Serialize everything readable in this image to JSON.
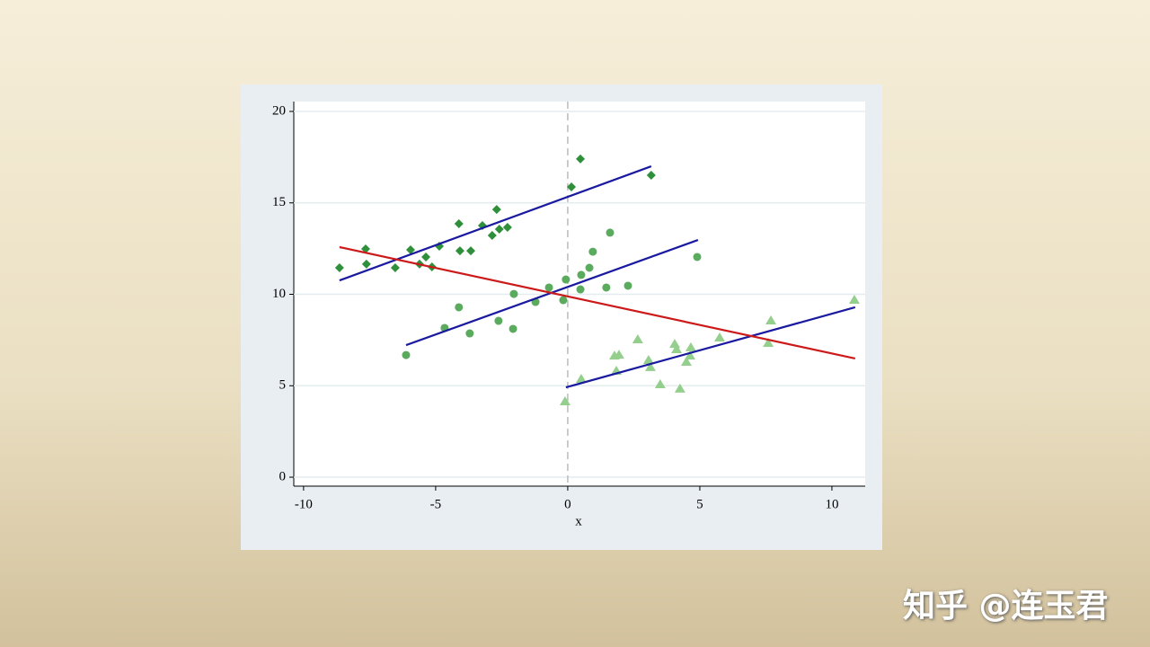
{
  "chart_data": {
    "type": "scatter",
    "xlabel": "x",
    "xlim": [
      -10.37,
      11.26
    ],
    "ylim": [
      -0.49,
      20.54
    ],
    "xticks": [
      -10,
      -5,
      0,
      5,
      10
    ],
    "yticks": [
      0,
      5,
      10,
      15,
      20
    ],
    "grid": true,
    "xline": 0,
    "series": [
      {
        "marker": "diamond",
        "color": "#2f8f3a",
        "x": [
          -8.64,
          -7.65,
          -7.62,
          -6.53,
          -5.95,
          -5.61,
          -5.37,
          -5.14,
          -4.86,
          -4.12,
          -4.08,
          -3.67,
          -3.23,
          -2.86,
          -2.69,
          -2.59,
          -2.28,
          0.14,
          0.48,
          3.16
        ],
        "values": [
          11.45,
          12.48,
          11.65,
          11.45,
          12.43,
          11.65,
          12.04,
          11.5,
          12.63,
          13.86,
          12.38,
          12.38,
          13.76,
          13.22,
          14.64,
          13.56,
          13.66,
          15.87,
          17.4,
          16.51
        ]
      },
      {
        "marker": "circle",
        "color": "#5aab5e",
        "x": [
          -6.12,
          -4.66,
          -4.12,
          -3.71,
          -2.62,
          -2.07,
          -2.04,
          -1.22,
          -0.71,
          -0.17,
          -0.07,
          0.48,
          0.51,
          0.82,
          0.95,
          1.46,
          1.6,
          2.28,
          4.9
        ],
        "values": [
          6.68,
          8.16,
          9.29,
          7.86,
          8.55,
          8.11,
          10.02,
          9.58,
          10.37,
          9.68,
          10.81,
          10.27,
          11.06,
          11.45,
          12.33,
          10.37,
          13.37,
          10.47,
          12.04
        ]
      },
      {
        "marker": "triangle",
        "color": "#94cf8e",
        "x": [
          -0.1,
          0.51,
          1.77,
          1.84,
          1.94,
          2.65,
          3.06,
          3.13,
          3.5,
          4.05,
          4.12,
          4.25,
          4.49,
          4.63,
          4.66,
          5.75,
          7.59,
          7.69,
          10.85
        ],
        "values": [
          4.13,
          5.36,
          6.63,
          5.8,
          6.68,
          7.52,
          6.39,
          6.0,
          5.06,
          7.27,
          6.98,
          4.82,
          6.29,
          6.63,
          7.08,
          7.62,
          7.32,
          8.55,
          9.68
        ]
      }
    ],
    "lines": [
      {
        "color": "#1a1aa0",
        "x": [
          -8.64,
          3.16
        ],
        "values": [
          10.76,
          17.0
        ]
      },
      {
        "color": "#1a1aa0",
        "x": [
          -6.12,
          4.93
        ],
        "values": [
          7.22,
          12.97
        ]
      },
      {
        "color": "#1a1aa0",
        "x": [
          -0.07,
          10.88
        ],
        "values": [
          4.91,
          9.29
        ]
      },
      {
        "color": "#cc1a1a",
        "x": [
          -8.64,
          10.88
        ],
        "values": [
          12.58,
          6.49
        ]
      }
    ]
  },
  "watermark": "知乎 @连玉君"
}
